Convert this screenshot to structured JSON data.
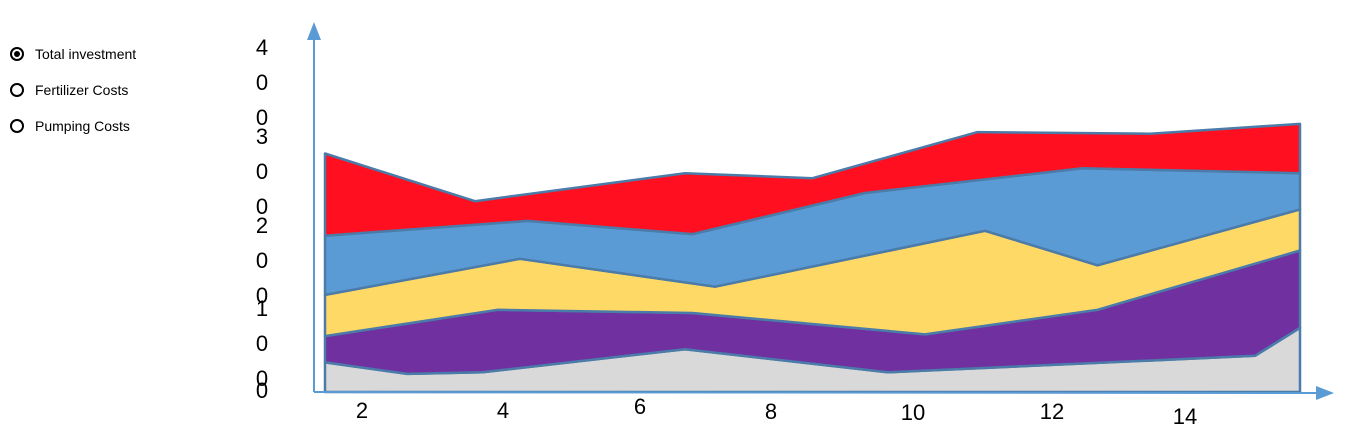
{
  "legend": {
    "items": [
      {
        "label": "Total investment",
        "selected": true
      },
      {
        "label": "Fertilizer Costs",
        "selected": false
      },
      {
        "label": "Pumping Costs",
        "selected": false
      }
    ]
  },
  "chart_data": {
    "type": "area",
    "stacked": true,
    "x_ticks": [
      2,
      4,
      6,
      8,
      10,
      12,
      14
    ],
    "y_ticks": [
      "4\n0\n0",
      "3\n0\n0",
      "2\n0\n0",
      "1\n0\n0",
      "0"
    ],
    "xlim": [
      1.4,
      15.4
    ],
    "ylim": [
      0,
      400
    ],
    "colors": [
      "#D9D9D9",
      "#7030A0",
      "#FFD966",
      "#5B9BD5",
      "#FF0F1F"
    ],
    "edge_color": "#4B7BA8",
    "series": [
      {
        "x": [
          2,
          3.1,
          4.1,
          6.8,
          9.5,
          14.4,
          15
        ],
        "y": [
          36,
          22,
          24,
          52,
          24,
          44,
          78
        ]
      },
      {
        "x": [
          2,
          4.3,
          6.9,
          10,
          12.3,
          15
        ],
        "y": [
          68,
          100,
          96,
          70,
          100,
          172
        ]
      },
      {
        "x": [
          2,
          4.6,
          7.2,
          10.8,
          12.3,
          15
        ],
        "y": [
          118,
          162,
          128,
          196,
          154,
          222
        ]
      },
      {
        "x": [
          2,
          4.7,
          6.9,
          9.2,
          12.1,
          15
        ],
        "y": [
          190,
          208,
          192,
          242,
          272,
          266
        ]
      },
      {
        "x": [
          2,
          4,
          6.8,
          8.5,
          10.7,
          13,
          15
        ],
        "y": [
          290,
          232,
          266,
          260,
          316,
          314,
          326
        ]
      }
    ]
  }
}
